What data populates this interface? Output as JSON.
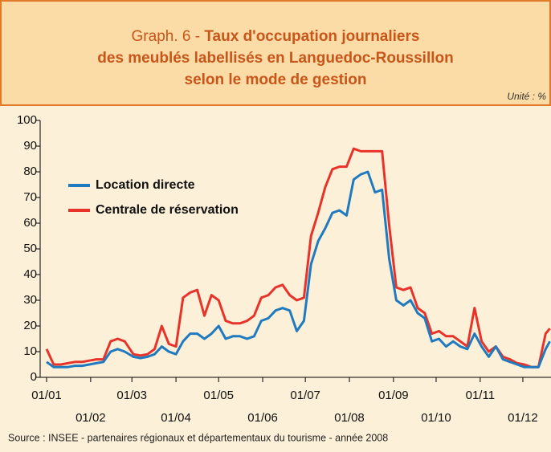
{
  "chart_data": {
    "type": "line",
    "title_label": "Graph. 6 -",
    "title": [
      "Taux d'occupation journaliers",
      "des meublés labellisés en Languedoc-Roussillon",
      "selon le mode de gestion"
    ],
    "unit": "Unité : %",
    "source": "Source : INSEE - partenaires régionaux et départementaux du tourisme - année 2008",
    "x": [
      "01/01",
      "06/01",
      "11/01",
      "16/01",
      "21/01",
      "26/01",
      "31/01",
      "05/02",
      "10/02",
      "15/02",
      "20/02",
      "25/02",
      "02/03",
      "07/03",
      "12/03",
      "17/03",
      "22/03",
      "27/03",
      "01/04",
      "06/04",
      "11/04",
      "16/04",
      "21/04",
      "26/04",
      "01/05",
      "06/05",
      "11/05",
      "16/05",
      "21/05",
      "26/05",
      "31/05",
      "05/06",
      "10/06",
      "15/06",
      "20/06",
      "25/06",
      "30/06",
      "05/07",
      "10/07",
      "15/07",
      "20/07",
      "25/07",
      "30/07",
      "04/08",
      "09/08",
      "14/08",
      "19/08",
      "24/08",
      "29/08",
      "03/09",
      "08/09",
      "13/09",
      "18/09",
      "23/09",
      "28/09",
      "03/10",
      "08/10",
      "13/10",
      "18/10",
      "23/10",
      "28/10",
      "02/11",
      "07/11",
      "12/11",
      "17/11",
      "22/11",
      "27/11",
      "02/12",
      "07/12",
      "12/12",
      "17/12",
      "20/12"
    ],
    "series": [
      {
        "name": "Location directe",
        "color": "#1f7ac0",
        "values": [
          6,
          4,
          4,
          4,
          4.5,
          4.5,
          5,
          5.5,
          6,
          10,
          11,
          10,
          8,
          7.5,
          8,
          9,
          12,
          10,
          9,
          14,
          17,
          17,
          15,
          17,
          20,
          15,
          16,
          16,
          15,
          16,
          22,
          23,
          26,
          27,
          26,
          18,
          22,
          44,
          53,
          58,
          64,
          65,
          63,
          77,
          79,
          80,
          72,
          73,
          46,
          30,
          28,
          30,
          25,
          23,
          14,
          15,
          12,
          14,
          12,
          11,
          17,
          12,
          8,
          12,
          7,
          6,
          5,
          4,
          4,
          4,
          11,
          14
        ]
      },
      {
        "name": "Centrale de réservation",
        "color": "#e8332a",
        "values": [
          11,
          5,
          5,
          5.5,
          6,
          6,
          6.5,
          7,
          7,
          14,
          15,
          14,
          9,
          8.5,
          9,
          11,
          20,
          13,
          12,
          31,
          33,
          34,
          24,
          32,
          30,
          22,
          21,
          21,
          22,
          24,
          31,
          32,
          35,
          36,
          32,
          30,
          31,
          55,
          64,
          74,
          81,
          82,
          82,
          89,
          88,
          88,
          88,
          88,
          59,
          35,
          34,
          35,
          27,
          25,
          17,
          18,
          16,
          16,
          14,
          12,
          27,
          14,
          10,
          12,
          8,
          7,
          5.5,
          5,
          4,
          4,
          17,
          19
        ]
      }
    ],
    "xticks": [
      "01/01",
      "01/02",
      "01/03",
      "01/04",
      "01/05",
      "01/06",
      "01/07",
      "01/08",
      "01/09",
      "01/10",
      "01/11",
      "01/12"
    ],
    "ylim": [
      0,
      100
    ],
    "yticks": [
      0,
      10,
      20,
      30,
      40,
      50,
      60,
      70,
      80,
      90,
      100
    ],
    "legend": "upper left"
  }
}
